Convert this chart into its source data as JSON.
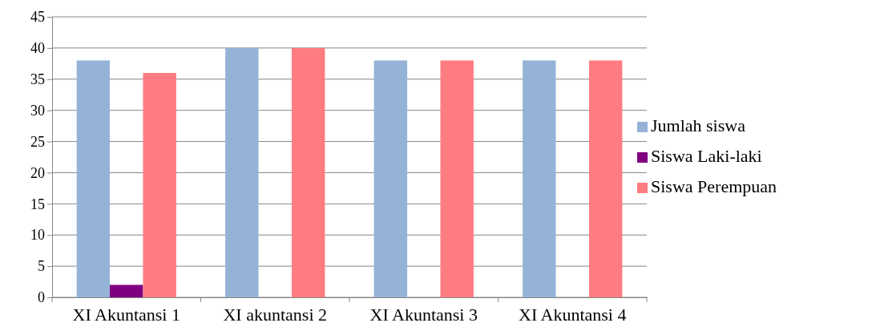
{
  "chart_data": {
    "type": "bar",
    "categories": [
      "XI Akuntansi 1",
      "XI akuntansi 2",
      "XI Akuntansi 3",
      "XI Akuntansi 4"
    ],
    "series": [
      {
        "name": "Jumlah siswa",
        "color": "#95b3d7",
        "values": [
          38,
          40,
          38,
          38
        ]
      },
      {
        "name": "Siswa Laki-laki",
        "color": "#800080",
        "values": [
          2,
          0,
          0,
          0
        ]
      },
      {
        "name": "Siswa Perempuan",
        "color": "#ff7c80",
        "values": [
          36,
          40,
          38,
          38
        ]
      }
    ],
    "ylim": [
      0,
      45
    ],
    "yticks": [
      0,
      5,
      10,
      15,
      20,
      25,
      30,
      35,
      40,
      45
    ],
    "grid": "y",
    "legend": "right"
  }
}
